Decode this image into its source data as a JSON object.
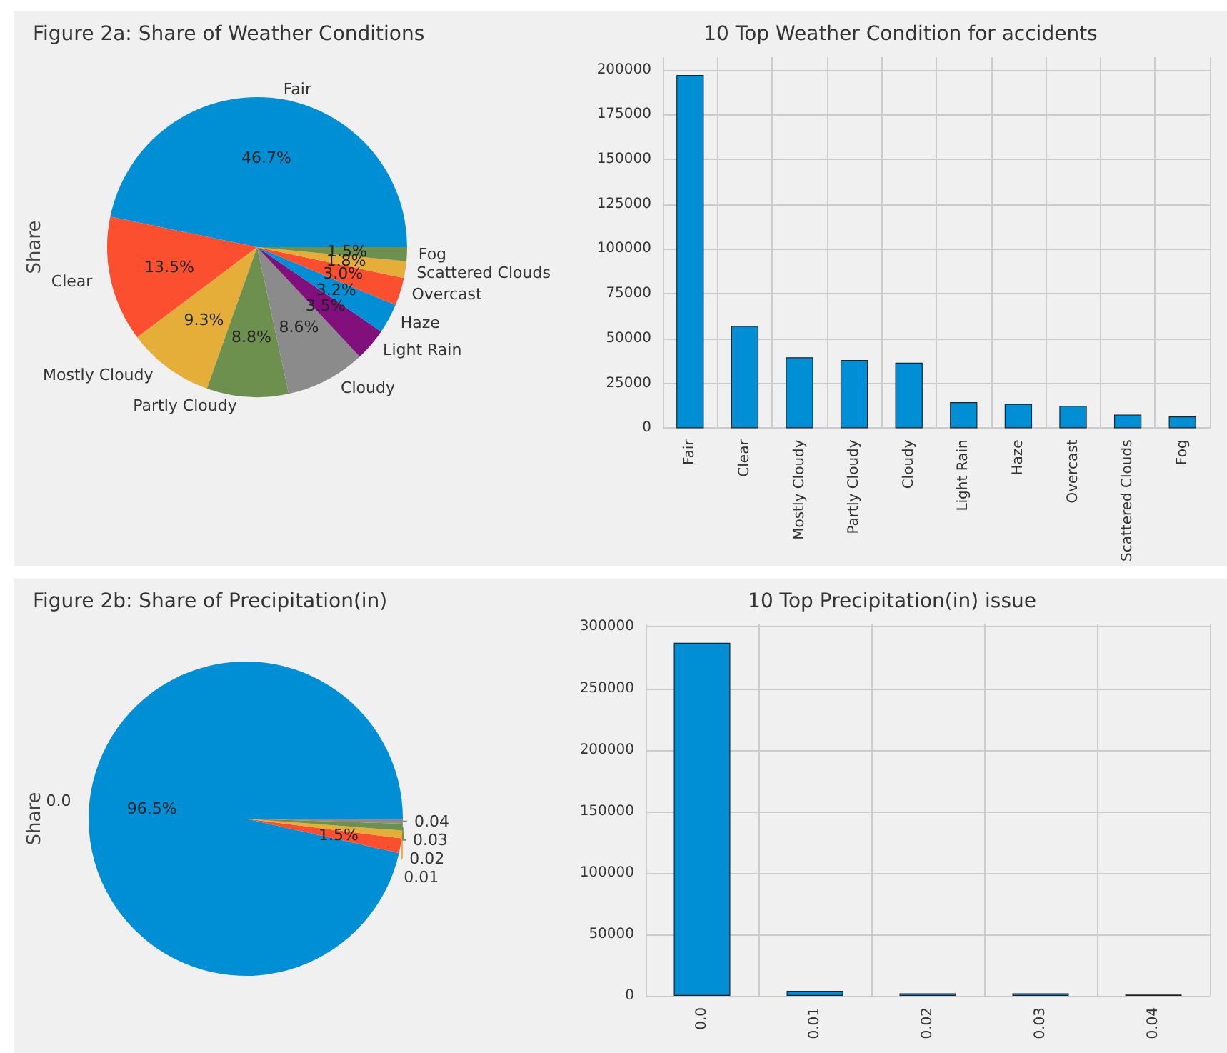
{
  "chart_data": [
    {
      "type": "pie",
      "title": "Figure 2a: Share of Weather Conditions",
      "ylabel": "Share",
      "categories": [
        "Fair",
        "Clear",
        "Mostly Cloudy",
        "Partly Cloudy",
        "Cloudy",
        "Light Rain",
        "Haze",
        "Overcast",
        "Scattered Clouds",
        "Fog"
      ],
      "values": [
        46.7,
        13.5,
        9.3,
        8.8,
        8.6,
        3.5,
        3.2,
        3.0,
        1.8,
        1.5
      ],
      "value_labels": [
        "46.7%",
        "13.5%",
        "9.3%",
        "8.8%",
        "8.6%",
        "3.5%",
        "3.2%",
        "3.0%",
        "1.8%",
        "1.5%"
      ],
      "colors": [
        "#008fd5",
        "#fc4f30",
        "#e5ae38",
        "#6d904f",
        "#8b8b8b",
        "#810f7c",
        "#008fd5",
        "#fc4f30",
        "#e5ae38",
        "#6d904f"
      ]
    },
    {
      "type": "bar",
      "title": "10 Top Weather Condition for accidents",
      "categories": [
        "Fair",
        "Clear",
        "Mostly Cloudy",
        "Partly Cloudy",
        "Cloudy",
        "Light Rain",
        "Haze",
        "Overcast",
        "Scattered Clouds",
        "Fog"
      ],
      "values": [
        197000,
        57000,
        39500,
        38000,
        36500,
        14500,
        13500,
        12500,
        7500,
        6500
      ],
      "color": "#008fd5",
      "ylim": [
        0,
        207000
      ],
      "yticks": [
        0,
        25000,
        50000,
        75000,
        100000,
        125000,
        150000,
        175000,
        200000
      ],
      "grid": true
    },
    {
      "type": "pie",
      "title": "Figure 2b: Share of Precipitation(in)",
      "ylabel": "Share",
      "categories": [
        "0.0",
        "0.01",
        "0.02",
        "0.03",
        "0.04"
      ],
      "values": [
        96.5,
        1.5,
        0.8,
        0.7,
        0.5
      ],
      "value_labels": [
        "96.5%",
        "1.5%",
        null,
        null,
        null
      ],
      "colors": [
        "#008fd5",
        "#fc4f30",
        "#e5ae38",
        "#6d904f",
        "#8b8b8b"
      ]
    },
    {
      "type": "bar",
      "title": "10 Top Precipitation(in) issue",
      "categories": [
        "0.0",
        "0.01",
        "0.02",
        "0.03",
        "0.04"
      ],
      "values": [
        287000,
        4000,
        2000,
        2000,
        1000
      ],
      "color": "#008fd5",
      "ylim": [
        0,
        302000
      ],
      "yticks": [
        0,
        50000,
        100000,
        150000,
        200000,
        250000,
        300000
      ],
      "grid": true
    }
  ]
}
